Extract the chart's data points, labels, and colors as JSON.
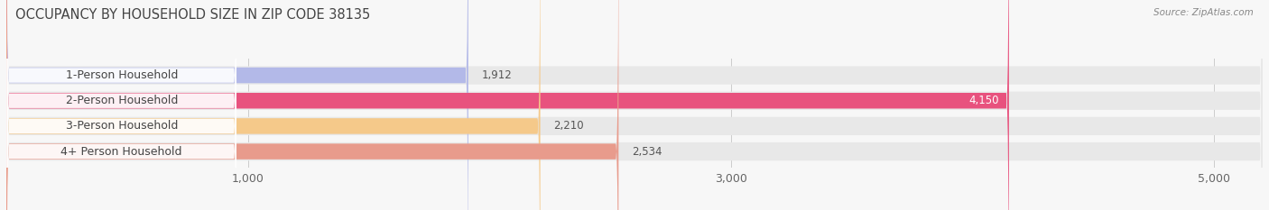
{
  "title": "OCCUPANCY BY HOUSEHOLD SIZE IN ZIP CODE 38135",
  "source": "Source: ZipAtlas.com",
  "categories": [
    "1-Person Household",
    "2-Person Household",
    "3-Person Household",
    "4+ Person Household"
  ],
  "values": [
    1912,
    4150,
    2210,
    2534
  ],
  "bar_colors": [
    "#b3b9e8",
    "#e8527e",
    "#f5c98a",
    "#e89b8c"
  ],
  "bar_bg_color": "#e8e8e8",
  "label_bg_color": "#ffffff",
  "bg_color": "#f7f7f7",
  "row_bg_color": "#f0f0f0",
  "xlim_min": 0,
  "xlim_max": 5200,
  "xticks": [
    1000,
    3000,
    5000
  ],
  "value_labels": [
    "1,912",
    "4,150",
    "2,210",
    "2,534"
  ],
  "value_label_colors": [
    "#555555",
    "#ffffff",
    "#555555",
    "#555555"
  ],
  "title_fontsize": 10.5,
  "tick_fontsize": 9,
  "label_fontsize": 9,
  "value_fontsize": 8.5
}
